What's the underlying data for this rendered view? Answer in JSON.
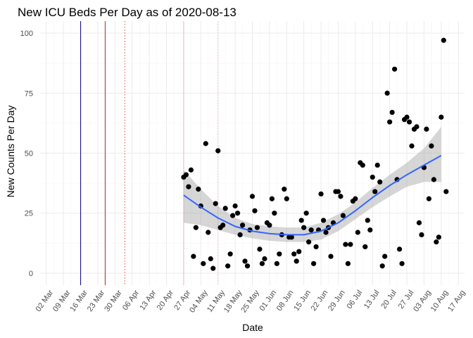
{
  "chart_data": {
    "type": "scatter",
    "title": "New ICU Beds Per Day as of 2020-08-13",
    "xlabel": "Date",
    "ylabel": "New Counts Per Day",
    "x_is_date": true,
    "year": 2020,
    "xlim": [
      "2020-03-02",
      "2020-08-17"
    ],
    "ylim": [
      0,
      100
    ],
    "y_ticks": [
      0,
      25,
      50,
      75,
      100
    ],
    "x_ticks": [
      {
        "date": "2020-03-02",
        "label": "02 Mar"
      },
      {
        "date": "2020-03-09",
        "label": "09 Mar"
      },
      {
        "date": "2020-03-16",
        "label": "16 Mar"
      },
      {
        "date": "2020-03-23",
        "label": "23 Mar"
      },
      {
        "date": "2020-03-30",
        "label": "30 Mar"
      },
      {
        "date": "2020-04-06",
        "label": "06 Apr"
      },
      {
        "date": "2020-04-13",
        "label": "13 Apr"
      },
      {
        "date": "2020-04-20",
        "label": "20 Apr"
      },
      {
        "date": "2020-04-27",
        "label": "27 Apr"
      },
      {
        "date": "2020-05-04",
        "label": "04 May"
      },
      {
        "date": "2020-05-11",
        "label": "11 May"
      },
      {
        "date": "2020-05-18",
        "label": "18 May"
      },
      {
        "date": "2020-05-25",
        "label": "25 May"
      },
      {
        "date": "2020-06-01",
        "label": "01 Jun"
      },
      {
        "date": "2020-06-08",
        "label": "08 Jun"
      },
      {
        "date": "2020-06-15",
        "label": "15 Jun"
      },
      {
        "date": "2020-06-22",
        "label": "22 Jun"
      },
      {
        "date": "2020-06-29",
        "label": "29 Jun"
      },
      {
        "date": "2020-07-06",
        "label": "06 Jul"
      },
      {
        "date": "2020-07-13",
        "label": "13 Jul"
      },
      {
        "date": "2020-07-20",
        "label": "20 Jul"
      },
      {
        "date": "2020-07-27",
        "label": "27 Jul"
      },
      {
        "date": "2020-08-03",
        "label": "03 Aug"
      },
      {
        "date": "2020-08-10",
        "label": "10 Aug"
      },
      {
        "date": "2020-08-17",
        "label": "17 Aug"
      }
    ],
    "grid": true,
    "colors": {
      "points": "#000000",
      "smooth_line": "#3366ff",
      "ribbon": "#999999"
    },
    "vlines": [
      {
        "date": "2020-03-16",
        "color": "#00008b",
        "style": "solid"
      },
      {
        "date": "2020-03-26",
        "color": "#b22222",
        "style": "solid"
      },
      {
        "date": "2020-04-03",
        "color": "#e34949",
        "style": "dotted"
      },
      {
        "date": "2020-04-27",
        "color": "#f2b8b8",
        "style": "solid"
      },
      {
        "date": "2020-05-11",
        "color": "#f2b8b8",
        "style": "dotted"
      }
    ],
    "points": [
      {
        "x": "2020-04-27",
        "y": 40
      },
      {
        "x": "2020-04-28",
        "y": 41
      },
      {
        "x": "2020-04-29",
        "y": 36
      },
      {
        "x": "2020-04-30",
        "y": 43
      },
      {
        "x": "2020-05-01",
        "y": 7
      },
      {
        "x": "2020-05-02",
        "y": 19
      },
      {
        "x": "2020-05-03",
        "y": 35
      },
      {
        "x": "2020-05-04",
        "y": 28
      },
      {
        "x": "2020-05-05",
        "y": 4
      },
      {
        "x": "2020-05-06",
        "y": 54
      },
      {
        "x": "2020-05-07",
        "y": 17
      },
      {
        "x": "2020-05-08",
        "y": 6
      },
      {
        "x": "2020-05-09",
        "y": 2
      },
      {
        "x": "2020-05-10",
        "y": 29
      },
      {
        "x": "2020-05-11",
        "y": 51
      },
      {
        "x": "2020-05-12",
        "y": 19
      },
      {
        "x": "2020-05-13",
        "y": 20
      },
      {
        "x": "2020-05-14",
        "y": 27
      },
      {
        "x": "2020-05-15",
        "y": 3
      },
      {
        "x": "2020-05-16",
        "y": 8
      },
      {
        "x": "2020-05-17",
        "y": 24
      },
      {
        "x": "2020-05-18",
        "y": 28
      },
      {
        "x": "2020-05-19",
        "y": 25
      },
      {
        "x": "2020-05-20",
        "y": 16
      },
      {
        "x": "2020-05-21",
        "y": 20
      },
      {
        "x": "2020-05-22",
        "y": 5
      },
      {
        "x": "2020-05-23",
        "y": 3
      },
      {
        "x": "2020-05-24",
        "y": 18
      },
      {
        "x": "2020-05-25",
        "y": 32
      },
      {
        "x": "2020-05-26",
        "y": 26
      },
      {
        "x": "2020-05-27",
        "y": 19
      },
      {
        "x": "2020-05-28",
        "y": 10
      },
      {
        "x": "2020-05-29",
        "y": 4
      },
      {
        "x": "2020-05-30",
        "y": 6
      },
      {
        "x": "2020-05-31",
        "y": 21
      },
      {
        "x": "2020-06-01",
        "y": 20
      },
      {
        "x": "2020-06-02",
        "y": 31
      },
      {
        "x": "2020-06-03",
        "y": 25
      },
      {
        "x": "2020-06-04",
        "y": 4
      },
      {
        "x": "2020-06-05",
        "y": 8
      },
      {
        "x": "2020-06-06",
        "y": 16
      },
      {
        "x": "2020-06-07",
        "y": 35
      },
      {
        "x": "2020-06-08",
        "y": 31
      },
      {
        "x": "2020-06-09",
        "y": 15
      },
      {
        "x": "2020-06-10",
        "y": 15
      },
      {
        "x": "2020-06-11",
        "y": 8
      },
      {
        "x": "2020-06-12",
        "y": 5
      },
      {
        "x": "2020-06-13",
        "y": 9
      },
      {
        "x": "2020-06-14",
        "y": 22
      },
      {
        "x": "2020-06-15",
        "y": 19
      },
      {
        "x": "2020-06-16",
        "y": 25
      },
      {
        "x": "2020-06-17",
        "y": 13
      },
      {
        "x": "2020-06-18",
        "y": 18
      },
      {
        "x": "2020-06-19",
        "y": 4
      },
      {
        "x": "2020-06-20",
        "y": 11
      },
      {
        "x": "2020-06-21",
        "y": 18
      },
      {
        "x": "2020-06-22",
        "y": 33
      },
      {
        "x": "2020-06-23",
        "y": 22
      },
      {
        "x": "2020-06-24",
        "y": 17
      },
      {
        "x": "2020-06-25",
        "y": 19
      },
      {
        "x": "2020-06-26",
        "y": 7
      },
      {
        "x": "2020-06-27",
        "y": 21
      },
      {
        "x": "2020-06-28",
        "y": 34
      },
      {
        "x": "2020-06-29",
        "y": 34
      },
      {
        "x": "2020-06-30",
        "y": 32
      },
      {
        "x": "2020-07-01",
        "y": 24
      },
      {
        "x": "2020-07-02",
        "y": 12
      },
      {
        "x": "2020-07-03",
        "y": 4
      },
      {
        "x": "2020-07-04",
        "y": 12
      },
      {
        "x": "2020-07-05",
        "y": 30
      },
      {
        "x": "2020-07-06",
        "y": 31
      },
      {
        "x": "2020-07-07",
        "y": 17
      },
      {
        "x": "2020-07-08",
        "y": 46
      },
      {
        "x": "2020-07-09",
        "y": 45
      },
      {
        "x": "2020-07-10",
        "y": 11
      },
      {
        "x": "2020-07-11",
        "y": 22
      },
      {
        "x": "2020-07-12",
        "y": 18
      },
      {
        "x": "2020-07-13",
        "y": 40
      },
      {
        "x": "2020-07-14",
        "y": 34
      },
      {
        "x": "2020-07-15",
        "y": 45
      },
      {
        "x": "2020-07-16",
        "y": 38
      },
      {
        "x": "2020-07-17",
        "y": 3
      },
      {
        "x": "2020-07-18",
        "y": 7
      },
      {
        "x": "2020-07-19",
        "y": 75
      },
      {
        "x": "2020-07-20",
        "y": 63
      },
      {
        "x": "2020-07-21",
        "y": 67
      },
      {
        "x": "2020-07-22",
        "y": 85
      },
      {
        "x": "2020-07-23",
        "y": 39
      },
      {
        "x": "2020-07-24",
        "y": 10
      },
      {
        "x": "2020-07-25",
        "y": 4
      },
      {
        "x": "2020-07-26",
        "y": 64
      },
      {
        "x": "2020-07-27",
        "y": 65
      },
      {
        "x": "2020-07-28",
        "y": 63
      },
      {
        "x": "2020-07-29",
        "y": 53
      },
      {
        "x": "2020-07-30",
        "y": 60
      },
      {
        "x": "2020-07-31",
        "y": 61
      },
      {
        "x": "2020-08-01",
        "y": 21
      },
      {
        "x": "2020-08-02",
        "y": 16
      },
      {
        "x": "2020-08-03",
        "y": 44
      },
      {
        "x": "2020-08-04",
        "y": 60
      },
      {
        "x": "2020-08-05",
        "y": 31
      },
      {
        "x": "2020-08-06",
        "y": 53
      },
      {
        "x": "2020-08-07",
        "y": 39
      },
      {
        "x": "2020-08-08",
        "y": 13
      },
      {
        "x": "2020-08-09",
        "y": 15
      },
      {
        "x": "2020-08-10",
        "y": 65
      },
      {
        "x": "2020-08-11",
        "y": 97
      },
      {
        "x": "2020-08-12",
        "y": 34
      }
    ],
    "smooth": [
      {
        "x": "2020-04-27",
        "y": 32.5,
        "lo": 21,
        "hi": 43
      },
      {
        "x": "2020-05-04",
        "y": 27.5,
        "lo": 20,
        "hi": 35
      },
      {
        "x": "2020-05-11",
        "y": 23,
        "lo": 18,
        "hi": 28
      },
      {
        "x": "2020-05-18",
        "y": 19.5,
        "lo": 16,
        "hi": 23
      },
      {
        "x": "2020-05-25",
        "y": 17.5,
        "lo": 14.5,
        "hi": 20.5
      },
      {
        "x": "2020-06-01",
        "y": 16.5,
        "lo": 13.5,
        "hi": 19.5
      },
      {
        "x": "2020-06-08",
        "y": 16,
        "lo": 13,
        "hi": 19
      },
      {
        "x": "2020-06-15",
        "y": 16,
        "lo": 13,
        "hi": 19
      },
      {
        "x": "2020-06-22",
        "y": 17.5,
        "lo": 14,
        "hi": 21
      },
      {
        "x": "2020-06-29",
        "y": 21,
        "lo": 17.5,
        "hi": 24.5
      },
      {
        "x": "2020-07-06",
        "y": 26,
        "lo": 22.5,
        "hi": 29.5
      },
      {
        "x": "2020-07-13",
        "y": 31.5,
        "lo": 27.5,
        "hi": 35.5
      },
      {
        "x": "2020-07-20",
        "y": 36.5,
        "lo": 32,
        "hi": 41
      },
      {
        "x": "2020-07-27",
        "y": 41,
        "lo": 36,
        "hi": 46
      },
      {
        "x": "2020-08-03",
        "y": 45,
        "lo": 38,
        "hi": 52
      },
      {
        "x": "2020-08-10",
        "y": 49,
        "lo": 38,
        "hi": 61
      }
    ]
  }
}
